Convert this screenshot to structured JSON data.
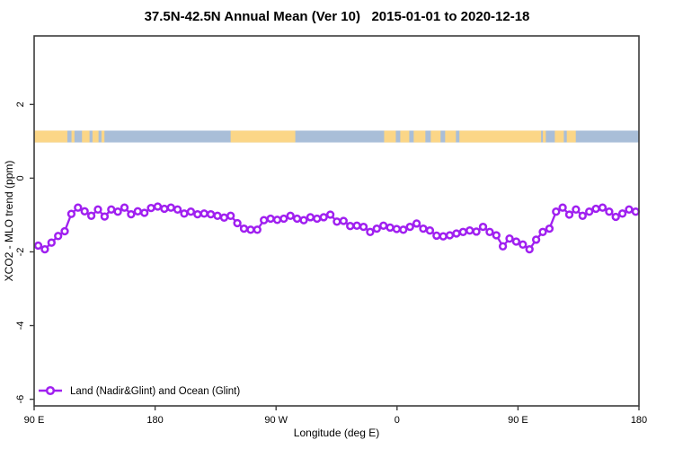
{
  "title": "37.5N-42.5N Annual Mean (Ver 10)   2015-01-01 to 2020-12-18",
  "chart_data": {
    "type": "line",
    "title": "37.5N-42.5N Annual Mean (Ver 10)   2015-01-01 to 2020-12-18",
    "xlabel": "Longitude (deg E)",
    "ylabel": "XCO2 - MLO trend (ppm)",
    "grid": false,
    "xlim_axis_deg": [
      90,
      540
    ],
    "ylim": [
      -6.18,
      3.86
    ],
    "x_ticks": [
      {
        "deg": 90,
        "label": "90 E"
      },
      {
        "deg": 180,
        "label": "180"
      },
      {
        "deg": 270,
        "label": "90 W"
      },
      {
        "deg": 360,
        "label": "0"
      },
      {
        "deg": 450,
        "label": "90 E"
      },
      {
        "deg": 540,
        "label": "180"
      }
    ],
    "y_ticks": [
      2,
      0,
      -2,
      -4,
      -6
    ],
    "legend": {
      "position": "bottom-left",
      "entries": [
        {
          "label": "Land (Nadir&Glint) and Ocean (Glint)",
          "color": "#A020F0",
          "marker": "open-circle"
        }
      ]
    },
    "series": [
      {
        "name": "Land (Nadir&Glint) and Ocean (Glint)",
        "color": "#A020F0",
        "marker": "open-circle",
        "start_deg": 93,
        "step_deg": 4.94,
        "values": [
          -1.83,
          -1.93,
          -1.75,
          -1.57,
          -1.44,
          -0.97,
          -0.8,
          -0.9,
          -1.02,
          -0.85,
          -1.04,
          -0.85,
          -0.91,
          -0.8,
          -0.98,
          -0.9,
          -0.94,
          -0.81,
          -0.77,
          -0.83,
          -0.8,
          -0.85,
          -0.96,
          -0.91,
          -0.98,
          -0.96,
          -0.98,
          -1.02,
          -1.07,
          -1.02,
          -1.22,
          -1.37,
          -1.4,
          -1.4,
          -1.14,
          -1.1,
          -1.13,
          -1.1,
          -1.02,
          -1.1,
          -1.14,
          -1.06,
          -1.1,
          -1.06,
          -0.99,
          -1.18,
          -1.16,
          -1.3,
          -1.29,
          -1.32,
          -1.46,
          -1.37,
          -1.29,
          -1.34,
          -1.38,
          -1.4,
          -1.32,
          -1.23,
          -1.37,
          -1.42,
          -1.56,
          -1.58,
          -1.55,
          -1.5,
          -1.46,
          -1.42,
          -1.45,
          -1.32,
          -1.46,
          -1.55,
          -1.85,
          -1.64,
          -1.72,
          -1.8,
          -1.93,
          -1.67,
          -1.46,
          -1.37,
          -0.91,
          -0.8,
          -0.99,
          -0.85,
          -1.02,
          -0.91,
          -0.83,
          -0.8,
          -0.91,
          -1.05,
          -0.96,
          -0.85,
          -0.91
        ]
      }
    ],
    "map_strip": {
      "description": "land/ocean band for 37.5N-42.5N latitude slice",
      "y_value_range": [
        0.97,
        1.29
      ],
      "ocean_color": "#A9BED8",
      "land_color": "#FBD687",
      "base": "ocean",
      "land_segments_axis_deg": [
        [
          90,
          114.7
        ],
        [
          117.8,
          120.0
        ],
        [
          125.6,
          131.2
        ],
        [
          133.4,
          137.9
        ],
        [
          140.1,
          142.3
        ],
        [
          236.2,
          284.3
        ],
        [
          350.4,
          359.1
        ],
        [
          362.4,
          369.1
        ],
        [
          372.4,
          381.1
        ],
        [
          385.1,
          392.4
        ],
        [
          395.8,
          403.8
        ],
        [
          406.4,
          467.2
        ],
        [
          468.5,
          470.7
        ],
        [
          477.4,
          484.1
        ],
        [
          486.3,
          493.0
        ]
      ]
    },
    "colors": {
      "series": "#A020F0",
      "frame": "#3c3c3c",
      "land": "#FBD687",
      "ocean": "#A9BED8",
      "background": "#ffffff"
    }
  }
}
